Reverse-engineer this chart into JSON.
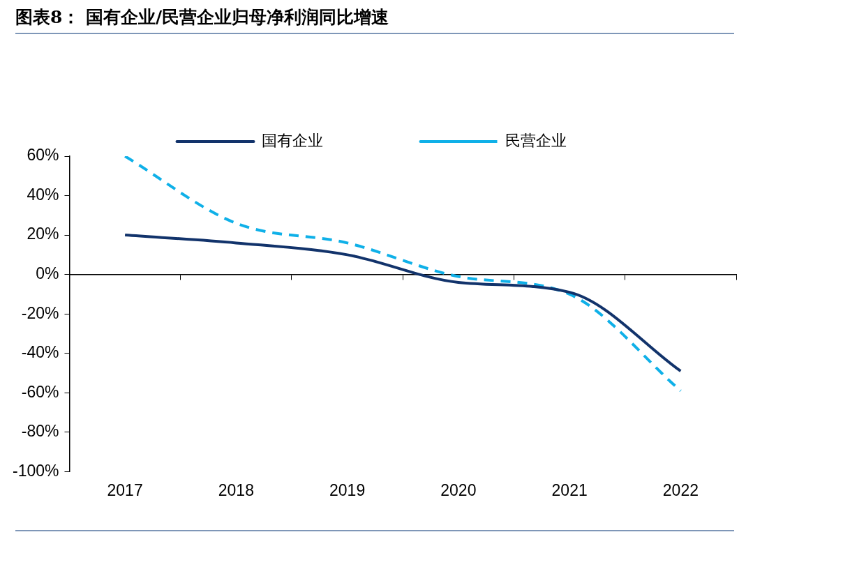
{
  "chart_data": {
    "type": "line",
    "title": "图表8： 国有企业/民营企业归母净利润同比增速",
    "categories": [
      "2017",
      "2018",
      "2019",
      "2020",
      "2021",
      "2022"
    ],
    "series": [
      {
        "name": "国有企业",
        "color": "#12336b",
        "line_style": "solid",
        "values": [
          20,
          16,
          10,
          -4,
          -9,
          -49
        ]
      },
      {
        "name": "民营企业",
        "color": "#0fb0e8",
        "line_style": "dashed",
        "values": [
          60,
          26,
          16,
          -1,
          -10,
          -59
        ]
      }
    ],
    "ylim": [
      -100,
      60
    ],
    "yticks": [
      {
        "value": -100,
        "label": "-100%"
      },
      {
        "value": -80,
        "label": "-80%"
      },
      {
        "value": -60,
        "label": "-60%"
      },
      {
        "value": -40,
        "label": "-40%"
      },
      {
        "value": -20,
        "label": "-20%"
      },
      {
        "value": 0,
        "label": "0%"
      },
      {
        "value": 20,
        "label": "20%"
      },
      {
        "value": 40,
        "label": "40%"
      },
      {
        "value": 60,
        "label": "60%"
      }
    ],
    "legend": "top",
    "marker": "none"
  }
}
